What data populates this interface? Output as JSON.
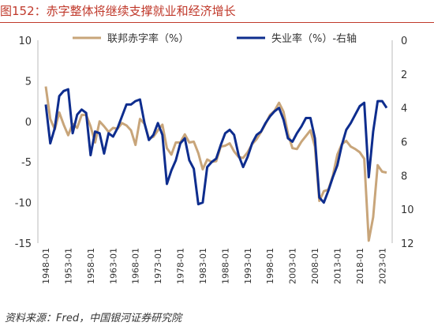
{
  "title": "图152：赤字整体将继续支撑就业和经济增长",
  "source": "资料来源：Fred，中国银河证券研究院",
  "colors": {
    "deficit": "#c8a57a",
    "unemployment": "#0e2d8e",
    "title": "#c0392b"
  },
  "chart_data": {
    "type": "line",
    "title": "赤字整体将继续支撑就业和经济增长",
    "y_left": {
      "min": -15,
      "max": 10,
      "ticks": [
        10,
        5,
        0,
        -5,
        -10,
        -15
      ]
    },
    "y_right": {
      "min": 0,
      "max": 12,
      "inverted": true,
      "ticks": [
        0,
        2,
        4,
        6,
        8,
        10,
        12
      ]
    },
    "x_ticks": [
      "1948-01",
      "1953-01",
      "1958-01",
      "1963-01",
      "1968-01",
      "1973-01",
      "1978-01",
      "1983-01",
      "1988-01",
      "1993-01",
      "1998-01",
      "2003-01",
      "2008-01",
      "2013-01",
      "2018-01",
      "2023-01"
    ],
    "grid": false,
    "legend_position": "top",
    "series": [
      {
        "name": "联邦赤字率（%）",
        "axis": "left",
        "points": [
          [
            1948,
            4.3
          ],
          [
            1949,
            0.3
          ],
          [
            1950,
            -1.0
          ],
          [
            1951,
            1.1
          ],
          [
            1952,
            -0.4
          ],
          [
            1953,
            -1.7
          ],
          [
            1954,
            -0.3
          ],
          [
            1955,
            -0.8
          ],
          [
            1956,
            0.8
          ],
          [
            1957,
            0.8
          ],
          [
            1958,
            -0.6
          ],
          [
            1959,
            -2.6
          ],
          [
            1960,
            0.0
          ],
          [
            1961,
            -0.6
          ],
          [
            1962,
            -1.3
          ],
          [
            1963,
            -0.8
          ],
          [
            1964,
            -0.9
          ],
          [
            1965,
            -0.2
          ],
          [
            1966,
            -0.5
          ],
          [
            1967,
            -1.1
          ],
          [
            1968,
            -2.9
          ],
          [
            1969,
            0.3
          ],
          [
            1970,
            -0.3
          ],
          [
            1971,
            -2.1
          ],
          [
            1972,
            -1.9
          ],
          [
            1973,
            -1.1
          ],
          [
            1974,
            -0.4
          ],
          [
            1975,
            -3.3
          ],
          [
            1976,
            -4.1
          ],
          [
            1977,
            -2.6
          ],
          [
            1978,
            -2.6
          ],
          [
            1979,
            -1.6
          ],
          [
            1980,
            -2.6
          ],
          [
            1981,
            -2.5
          ],
          [
            1982,
            -3.9
          ],
          [
            1983,
            -5.9
          ],
          [
            1984,
            -4.7
          ],
          [
            1985,
            -5.0
          ],
          [
            1986,
            -4.9
          ],
          [
            1987,
            -3.1
          ],
          [
            1988,
            -3.0
          ],
          [
            1989,
            -2.7
          ],
          [
            1990,
            -3.7
          ],
          [
            1991,
            -4.4
          ],
          [
            1992,
            -4.5
          ],
          [
            1993,
            -3.8
          ],
          [
            1994,
            -2.8
          ],
          [
            1995,
            -2.2
          ],
          [
            1996,
            -1.3
          ],
          [
            1997,
            -0.3
          ],
          [
            1998,
            0.8
          ],
          [
            1999,
            1.3
          ],
          [
            2000,
            2.3
          ],
          [
            2001,
            1.2
          ],
          [
            2002,
            -1.5
          ],
          [
            2003,
            -3.3
          ],
          [
            2004,
            -3.4
          ],
          [
            2005,
            -2.5
          ],
          [
            2006,
            -1.8
          ],
          [
            2007,
            -1.1
          ],
          [
            2008,
            -3.1
          ],
          [
            2009,
            -9.8
          ],
          [
            2010,
            -8.6
          ],
          [
            2011,
            -8.4
          ],
          [
            2012,
            -6.7
          ],
          [
            2013,
            -4.1
          ],
          [
            2014,
            -2.8
          ],
          [
            2015,
            -2.4
          ],
          [
            2016,
            -3.1
          ],
          [
            2017,
            -3.4
          ],
          [
            2018,
            -3.8
          ],
          [
            2019,
            -4.6
          ],
          [
            2020,
            -14.7
          ],
          [
            2021,
            -11.8
          ],
          [
            2022,
            -5.4
          ],
          [
            2023,
            -6.2
          ],
          [
            2024,
            -6.3
          ]
        ]
      },
      {
        "name": "失业率（%）-右轴",
        "axis": "right",
        "points": [
          [
            1948,
            3.8
          ],
          [
            1949,
            6.1
          ],
          [
            1950,
            5.2
          ],
          [
            1951,
            3.3
          ],
          [
            1952,
            3.0
          ],
          [
            1953,
            2.9
          ],
          [
            1954,
            5.5
          ],
          [
            1955,
            4.4
          ],
          [
            1956,
            4.1
          ],
          [
            1957,
            4.3
          ],
          [
            1958,
            6.8
          ],
          [
            1959,
            5.4
          ],
          [
            1960,
            5.5
          ],
          [
            1961,
            6.7
          ],
          [
            1962,
            5.5
          ],
          [
            1963,
            5.7
          ],
          [
            1964,
            5.2
          ],
          [
            1965,
            4.5
          ],
          [
            1966,
            3.8
          ],
          [
            1967,
            3.8
          ],
          [
            1968,
            3.6
          ],
          [
            1969,
            3.5
          ],
          [
            1970,
            4.9
          ],
          [
            1971,
            5.9
          ],
          [
            1972,
            5.6
          ],
          [
            1973,
            4.9
          ],
          [
            1974,
            5.6
          ],
          [
            1975,
            8.5
          ],
          [
            1976,
            7.7
          ],
          [
            1977,
            7.1
          ],
          [
            1978,
            6.1
          ],
          [
            1979,
            5.8
          ],
          [
            1980,
            7.1
          ],
          [
            1981,
            7.6
          ],
          [
            1982,
            9.7
          ],
          [
            1983,
            9.6
          ],
          [
            1984,
            7.5
          ],
          [
            1985,
            7.2
          ],
          [
            1986,
            7.0
          ],
          [
            1987,
            6.2
          ],
          [
            1988,
            5.5
          ],
          [
            1989,
            5.3
          ],
          [
            1990,
            5.6
          ],
          [
            1991,
            6.8
          ],
          [
            1992,
            7.5
          ],
          [
            1993,
            6.9
          ],
          [
            1994,
            6.1
          ],
          [
            1995,
            5.6
          ],
          [
            1996,
            5.4
          ],
          [
            1997,
            4.9
          ],
          [
            1998,
            4.5
          ],
          [
            1999,
            4.2
          ],
          [
            2000,
            4.0
          ],
          [
            2001,
            4.7
          ],
          [
            2002,
            5.8
          ],
          [
            2003,
            6.0
          ],
          [
            2004,
            5.5
          ],
          [
            2005,
            5.1
          ],
          [
            2006,
            4.6
          ],
          [
            2007,
            4.6
          ],
          [
            2008,
            5.8
          ],
          [
            2009,
            9.3
          ],
          [
            2010,
            9.6
          ],
          [
            2011,
            8.9
          ],
          [
            2012,
            8.1
          ],
          [
            2013,
            7.4
          ],
          [
            2014,
            6.2
          ],
          [
            2015,
            5.3
          ],
          [
            2016,
            4.9
          ],
          [
            2017,
            4.4
          ],
          [
            2018,
            3.9
          ],
          [
            2019,
            3.7
          ],
          [
            2020,
            8.1
          ],
          [
            2021,
            5.4
          ],
          [
            2022,
            3.6
          ],
          [
            2023,
            3.6
          ],
          [
            2024,
            4.0
          ]
        ]
      }
    ]
  }
}
